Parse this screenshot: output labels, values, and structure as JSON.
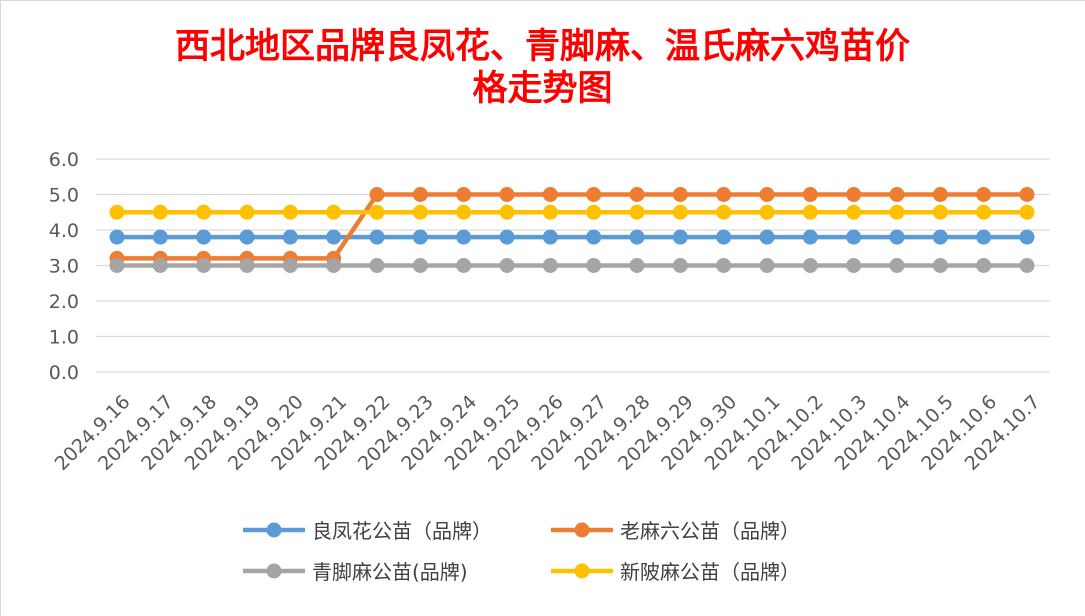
{
  "chart_data": {
    "type": "line",
    "title": "西北地区品牌良凤花、青脚麻、温氏麻六鸡苗价格走势图",
    "title_lines": [
      "西北地区品牌良凤花、青脚麻、温氏麻六鸡苗价",
      "格走势图"
    ],
    "categories": [
      "2024.9.16",
      "2024.9.17",
      "2024.9.18",
      "2024.9.19",
      "2024.9.20",
      "2024.9.21",
      "2024.9.22",
      "2024.9.23",
      "2024.9.24",
      "2024.9.25",
      "2024.9.26",
      "2024.9.27",
      "2024.9.28",
      "2024.9.29",
      "2024.9.30",
      "2024.10.1",
      "2024.10.2",
      "2024.10.3",
      "2024.10.4",
      "2024.10.5",
      "2024.10.6",
      "2024.10.7"
    ],
    "ylim": [
      0,
      6
    ],
    "yticks": [
      "0.0",
      "1.0",
      "2.0",
      "3.0",
      "4.0",
      "5.0",
      "6.0"
    ],
    "grid": true,
    "legend_position": "bottom",
    "series": [
      {
        "name": "良凤花公苗（品牌）",
        "color": "#5b9bd5",
        "values": [
          3.8,
          3.8,
          3.8,
          3.8,
          3.8,
          3.8,
          3.8,
          3.8,
          3.8,
          3.8,
          3.8,
          3.8,
          3.8,
          3.8,
          3.8,
          3.8,
          3.8,
          3.8,
          3.8,
          3.8,
          3.8,
          3.8
        ]
      },
      {
        "name": "老麻六公苗（品牌）",
        "color": "#ed7d31",
        "values": [
          3.2,
          3.2,
          3.2,
          3.2,
          3.2,
          3.2,
          5.0,
          5.0,
          5.0,
          5.0,
          5.0,
          5.0,
          5.0,
          5.0,
          5.0,
          5.0,
          5.0,
          5.0,
          5.0,
          5.0,
          5.0,
          5.0
        ]
      },
      {
        "name": "青脚麻公苗(品牌)",
        "color": "#a5a5a5",
        "values": [
          3.0,
          3.0,
          3.0,
          3.0,
          3.0,
          3.0,
          3.0,
          3.0,
          3.0,
          3.0,
          3.0,
          3.0,
          3.0,
          3.0,
          3.0,
          3.0,
          3.0,
          3.0,
          3.0,
          3.0,
          3.0,
          3.0
        ]
      },
      {
        "name": "新陂麻公苗（品牌）",
        "color": "#ffc000",
        "values": [
          4.5,
          4.5,
          4.5,
          4.5,
          4.5,
          4.5,
          4.5,
          4.5,
          4.5,
          4.5,
          4.5,
          4.5,
          4.5,
          4.5,
          4.5,
          4.5,
          4.5,
          4.5,
          4.5,
          4.5,
          4.5,
          4.5
        ]
      }
    ]
  }
}
